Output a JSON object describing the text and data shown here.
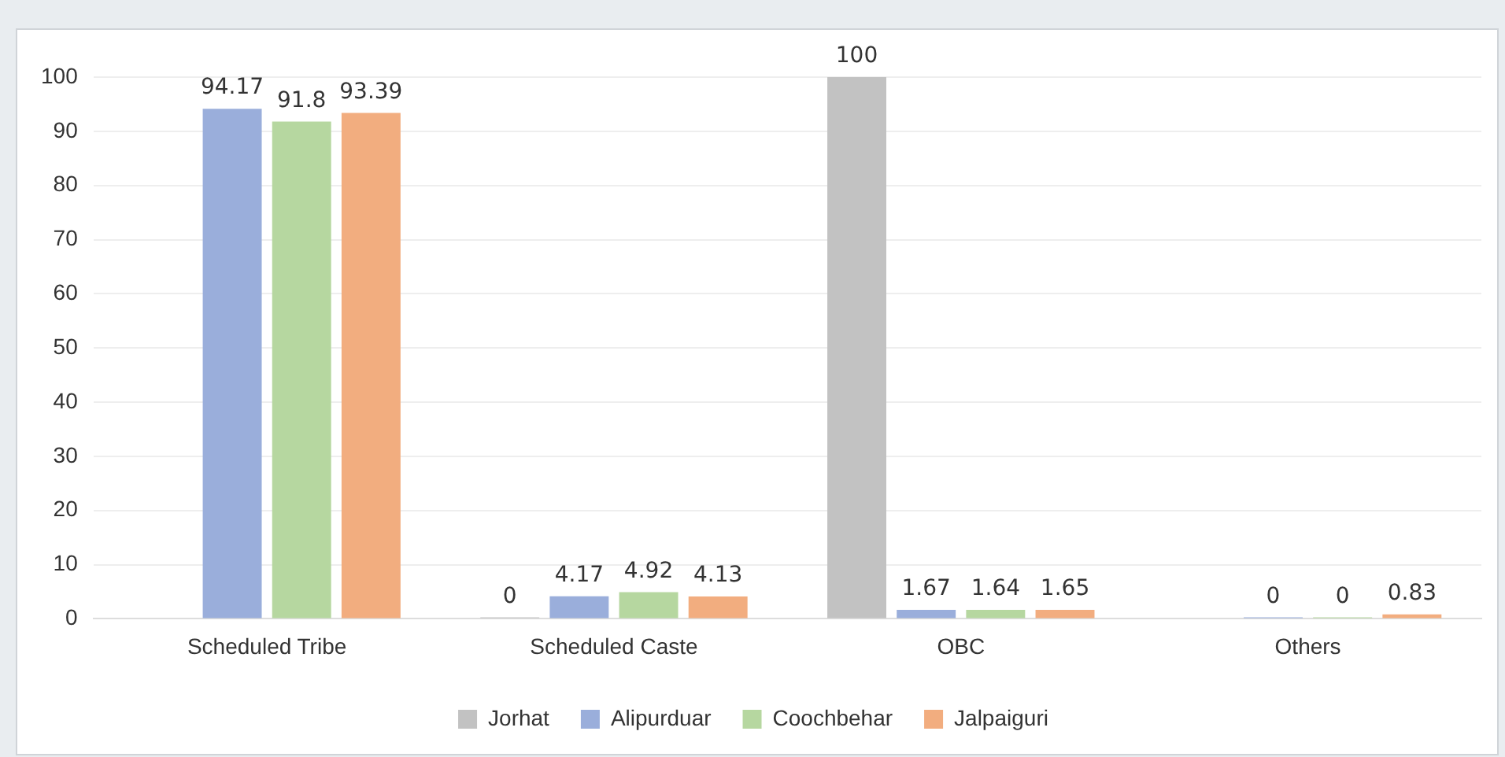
{
  "chart_data": {
    "type": "bar",
    "categories": [
      "Scheduled Tribe",
      "Scheduled Caste",
      "OBC",
      "Others"
    ],
    "series": [
      {
        "name": "Jorhat",
        "color": "#c2c2c2",
        "values": [
          null,
          0,
          100,
          null
        ]
      },
      {
        "name": "Alipurduar",
        "color": "#9aaedb",
        "values": [
          94.17,
          4.17,
          1.67,
          0
        ]
      },
      {
        "name": "Coochbehar",
        "color": "#b6d7a0",
        "values": [
          91.8,
          4.92,
          1.64,
          0
        ]
      },
      {
        "name": "Jalpaiguri",
        "color": "#f2ad7f",
        "values": [
          93.39,
          4.13,
          1.65,
          0.83
        ]
      }
    ],
    "ylim": [
      0,
      100
    ],
    "yticks": [
      0,
      10,
      20,
      30,
      40,
      50,
      60,
      70,
      80,
      90,
      100
    ],
    "grid": "y",
    "legend": "bottom",
    "data_labels": true
  }
}
